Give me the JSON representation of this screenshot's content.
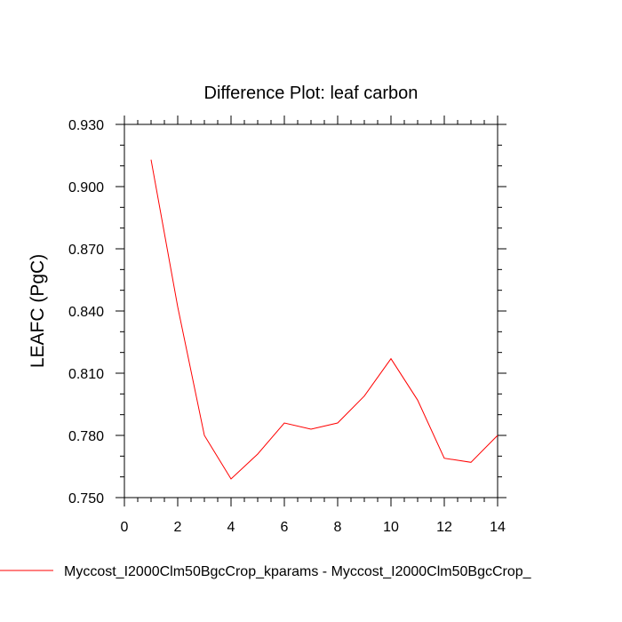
{
  "chart_data": {
    "type": "line",
    "title": "Difference Plot: leaf carbon",
    "xlabel": "",
    "ylabel": "LEAFC  (PgC)",
    "xlim": [
      0,
      14
    ],
    "ylim": [
      0.75,
      0.93
    ],
    "xticks": [
      0,
      2,
      4,
      6,
      8,
      10,
      12,
      14
    ],
    "xtick_labels": [
      "0",
      "2",
      "4",
      "6",
      "8",
      "10",
      "12",
      "14"
    ],
    "yticks": [
      0.75,
      0.78,
      0.81,
      0.84,
      0.87,
      0.9,
      0.93
    ],
    "ytick_labels": [
      "0.750",
      "0.780",
      "0.810",
      "0.840",
      "0.870",
      "0.900",
      "0.930"
    ],
    "grid": false,
    "series": [
      {
        "name": "Myccost_I2000Clm50BgcCrop_kparams - Myccost_I2000Clm50BgcCrop_",
        "color": "#ff0000",
        "x": [
          1,
          2,
          3,
          4,
          5,
          6,
          7,
          8,
          9,
          10,
          11,
          12,
          13,
          14
        ],
        "values": [
          0.913,
          0.842,
          0.78,
          0.759,
          0.771,
          0.786,
          0.783,
          0.786,
          0.799,
          0.817,
          0.797,
          0.769,
          0.767,
          0.78
        ]
      }
    ],
    "legend_position": "bottom-left"
  }
}
